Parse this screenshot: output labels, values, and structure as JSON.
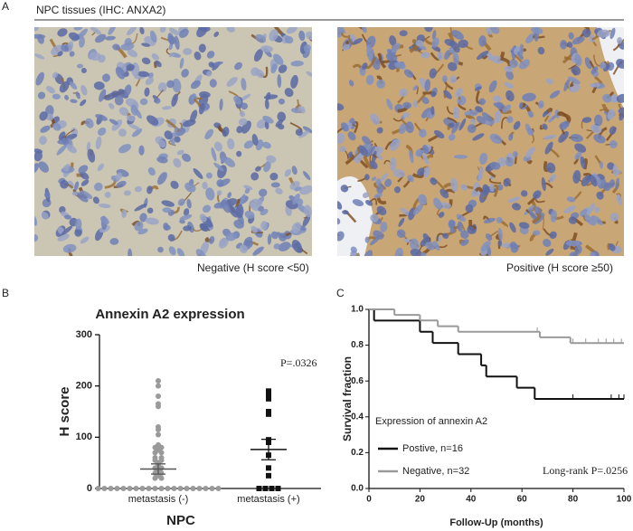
{
  "panel_a": {
    "label": "A",
    "title": "NPC tissues (IHC: ANXA2)",
    "caption_left": "Negative   (H score <50)",
    "caption_right": "Positive   (H score ≥50)"
  },
  "chart_data": [
    {
      "type": "scatter",
      "label": "B",
      "title": "Annexin A2 expression",
      "ylabel": "H score",
      "xlabel": "NPC",
      "annotation": "P=.0326",
      "categories": [
        "metastasis (-)",
        "metastasis (+)"
      ],
      "series": [
        {
          "color": "#9a9a9a",
          "values": [
            210,
            200,
            180,
            165,
            160,
            120,
            115,
            105,
            85,
            80,
            80,
            75,
            70,
            70,
            60,
            60,
            55,
            55,
            50,
            45,
            40,
            40,
            35,
            30,
            30,
            25,
            20,
            20,
            0,
            0,
            0,
            0,
            0,
            0,
            0,
            0,
            0,
            0,
            0,
            0,
            0,
            0,
            0,
            0,
            0,
            0,
            0,
            0
          ]
        },
        {
          "color": "#111111",
          "values": [
            190,
            180,
            175,
            150,
            145,
            95,
            90,
            65,
            40,
            25,
            0,
            0,
            0,
            0
          ]
        }
      ],
      "means": [
        38,
        76
      ],
      "sems": [
        10,
        20
      ],
      "ylim": [
        0,
        300
      ],
      "yticks": [
        0,
        100,
        200,
        300
      ]
    },
    {
      "type": "line",
      "label": "C",
      "ylabel": "Survival fraction",
      "xlabel": "Follow-Up (months)",
      "legend_title": "Expression of annexin A2",
      "annotation": "Long-rank P=.0256",
      "series": [
        {
          "name": "Postive, n=16",
          "color": "#111111",
          "x": [
            0,
            2,
            20,
            25,
            35,
            44,
            46,
            58,
            65,
            100
          ],
          "values": [
            1.0,
            0.9375,
            0.875,
            0.8125,
            0.75,
            0.6875,
            0.625,
            0.5625,
            0.5,
            0.5
          ],
          "censored": [
            80,
            95,
            98,
            100
          ]
        },
        {
          "name": "Negative, n=32",
          "color": "#9a9a9a",
          "x": [
            0,
            10,
            20,
            27,
            35,
            67,
            79,
            100
          ],
          "values": [
            1.0,
            0.969,
            0.938,
            0.906,
            0.875,
            0.844,
            0.812,
            0.812
          ],
          "censored": [
            66,
            80,
            85,
            90,
            93,
            96,
            99
          ]
        }
      ],
      "xlim": [
        0,
        100
      ],
      "xticks": [
        0,
        20,
        40,
        60,
        80,
        100
      ],
      "ylim": [
        0,
        1.0
      ],
      "yticks": [
        {
          "value": 0,
          "label": "0.0"
        },
        0.2,
        0.4,
        0.6,
        0.8,
        {
          "value": 1.0,
          "label": "1.0"
        }
      ]
    }
  ]
}
